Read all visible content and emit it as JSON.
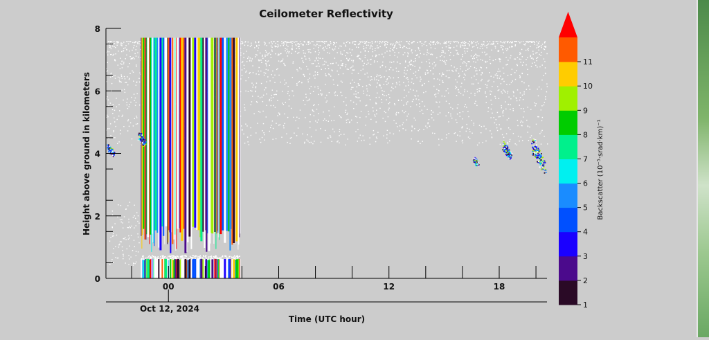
{
  "chart_data": {
    "type": "heatmap",
    "title": "Ceilometer Reflectivity",
    "xlabel": "Time (UTC hour)",
    "ylabel": "Height above ground in kilometers",
    "date_label": "Oct 12, 2024",
    "xlim": [
      -3.4,
      20.6
    ],
    "ylim": [
      0,
      8
    ],
    "x_ticks": [
      {
        "value": 0,
        "label": "00"
      },
      {
        "value": 6,
        "label": "06"
      },
      {
        "value": 12,
        "label": "12"
      },
      {
        "value": 18,
        "label": "18"
      }
    ],
    "x_minor_ticks": [
      -2,
      2,
      4,
      8,
      10,
      14,
      16,
      20
    ],
    "y_ticks": [
      {
        "value": 0,
        "label": "0"
      },
      {
        "value": 2,
        "label": "2"
      },
      {
        "value": 4,
        "label": "4"
      },
      {
        "value": 6,
        "label": "6"
      },
      {
        "value": 8,
        "label": "8"
      }
    ],
    "colorbar": {
      "label": "Backscatter (10⁻⁵·srad·km)⁻¹",
      "ticks": [
        "1",
        "2",
        "3",
        "4",
        "5",
        "6",
        "7",
        "8",
        "9",
        "10",
        "11"
      ],
      "colors": [
        "#2a0a26",
        "#4b0a8c",
        "#1a00ff",
        "#0050ff",
        "#1a8cff",
        "#00f0f0",
        "#00f08c",
        "#00cc00",
        "#a0f000",
        "#ffcc00",
        "#ff5a00"
      ],
      "extend_color": "#ff0000",
      "direction": "extends above 11"
    },
    "features": [
      {
        "name": "noise-band",
        "x": [
          -3.4,
          20.6
        ],
        "y_top_km": 7.6,
        "description": "sparse background noise"
      },
      {
        "name": "saturated-columns",
        "x": [
          -1.5,
          3.9
        ],
        "y": [
          0,
          7.7
        ]
      },
      {
        "name": "cloud-layer",
        "x": [
          -1.6,
          -1.3
        ],
        "y": [
          4.2,
          4.7
        ]
      },
      {
        "name": "cloud-layer",
        "x": [
          -3.3,
          -3.0
        ],
        "y": [
          3.9,
          4.3
        ]
      },
      {
        "name": "cloud-layer",
        "x": [
          18.2,
          18.6
        ],
        "y": [
          3.8,
          4.4
        ]
      },
      {
        "name": "cloud-layer",
        "x": [
          19.8,
          20.5
        ],
        "y": [
          3.3,
          4.5
        ]
      },
      {
        "name": "cloud-layer",
        "x": [
          16.6,
          16.8
        ],
        "y": [
          3.6,
          3.9
        ]
      }
    ]
  }
}
